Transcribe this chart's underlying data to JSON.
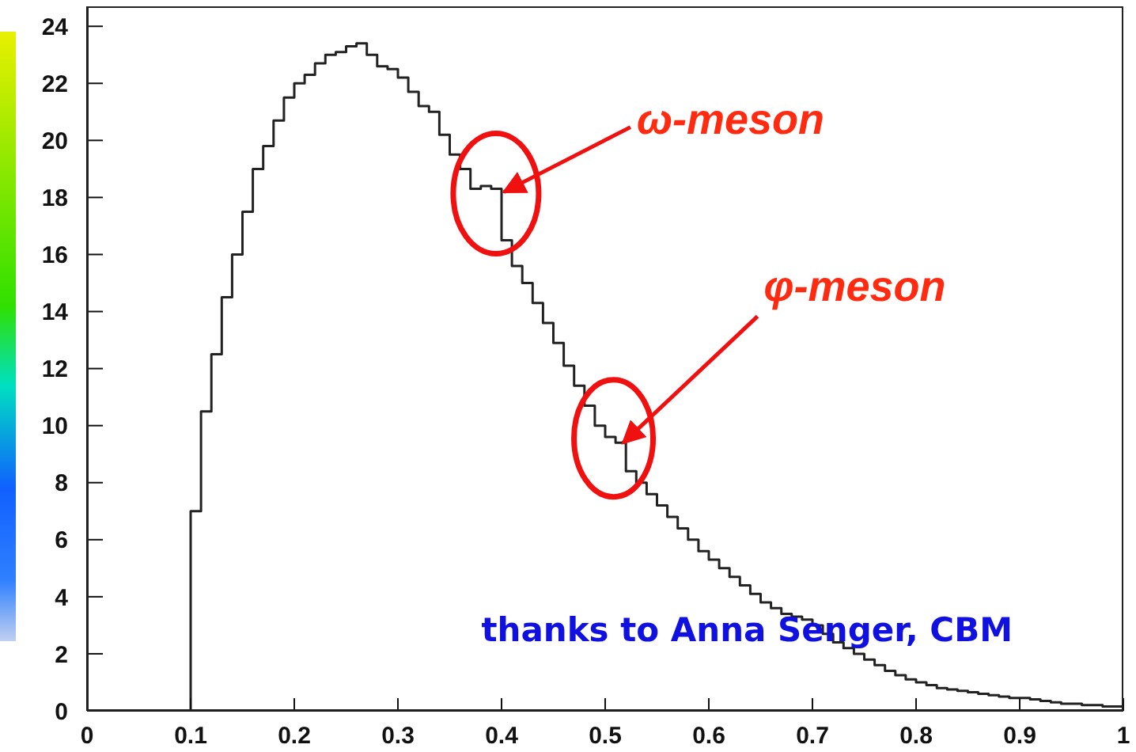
{
  "chart_data": {
    "type": "histogram",
    "bins": [
      0.1,
      0.11,
      0.12,
      0.13,
      0.14,
      0.15,
      0.16,
      0.17,
      0.18,
      0.19,
      0.2,
      0.21,
      0.22,
      0.23,
      0.24,
      0.25,
      0.26,
      0.27,
      0.28,
      0.29,
      0.3,
      0.31,
      0.32,
      0.33,
      0.34,
      0.35,
      0.36,
      0.37,
      0.38,
      0.39,
      0.4,
      0.41,
      0.42,
      0.43,
      0.44,
      0.45,
      0.46,
      0.47,
      0.48,
      0.49,
      0.5,
      0.51,
      0.52,
      0.53,
      0.54,
      0.55,
      0.56,
      0.57,
      0.58,
      0.59,
      0.6,
      0.61,
      0.62,
      0.63,
      0.64,
      0.65,
      0.66,
      0.67,
      0.68,
      0.69,
      0.7,
      0.71,
      0.72,
      0.73,
      0.74,
      0.75,
      0.76,
      0.77,
      0.78,
      0.79,
      0.8,
      0.81,
      0.82,
      0.83,
      0.84,
      0.85,
      0.86,
      0.87,
      0.88,
      0.89,
      0.9,
      0.91,
      0.92,
      0.93,
      0.94,
      0.95,
      0.96,
      0.97,
      0.98,
      0.99,
      1.0
    ],
    "values": [
      7,
      10.5,
      12.5,
      14.5,
      16,
      17.5,
      19,
      19.8,
      20.7,
      21.5,
      22,
      22.3,
      22.7,
      23,
      23.1,
      23.3,
      23.4,
      23,
      22.6,
      22.5,
      22.2,
      21.7,
      21.2,
      21,
      20.2,
      19.5,
      19,
      18.3,
      18.4,
      18.3,
      16.5,
      15.6,
      15,
      14.3,
      13.6,
      12.9,
      12.1,
      11.4,
      10.7,
      10,
      9.6,
      9.4,
      8.4,
      8,
      7.6,
      7.2,
      6.8,
      6.4,
      6,
      5.6,
      5.3,
      5,
      4.7,
      4.4,
      4.1,
      3.8,
      3.6,
      3.4,
      3.3,
      3.2,
      3,
      2.7,
      2.4,
      2.2,
      2,
      1.8,
      1.6,
      1.4,
      1.25,
      1.1,
      1,
      0.9,
      0.8,
      0.75,
      0.7,
      0.65,
      0.6,
      0.55,
      0.5,
      0.45,
      0.45,
      0.4,
      0.35,
      0.3,
      0.25,
      0.25,
      0.2,
      0.2,
      0.15,
      0.15
    ],
    "color": "#222222",
    "xlim": [
      0,
      1
    ],
    "xticks": [
      0,
      0.1,
      0.2,
      0.3,
      0.4,
      0.5,
      0.6,
      0.7,
      0.8,
      0.9,
      1
    ],
    "ylim": [
      0,
      24.7
    ],
    "yticks": [
      0,
      2,
      4,
      6,
      8,
      10,
      12,
      14,
      16,
      18,
      20,
      22,
      24
    ],
    "annotations": [
      {
        "text": "ω-meson",
        "x": 0.39,
        "y": 18.3
      },
      {
        "text": "φ-meson",
        "x": 0.505,
        "y": 9.5
      },
      "thanks to Anna Senger, CBM"
    ]
  }
}
